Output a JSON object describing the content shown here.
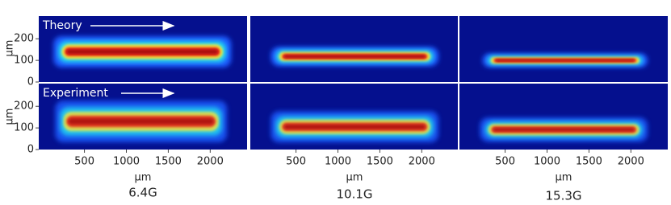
{
  "figure": {
    "row_labels": [
      "Theory",
      "Experiment"
    ],
    "y_label": "μm",
    "x_label": "μm",
    "columns": [
      "6.4G",
      "10.1G",
      "15.3G"
    ],
    "xlim": [
      -45,
      2440
    ],
    "ylim": [
      0,
      305
    ],
    "xticks": [
      500,
      1000,
      1500,
      2000
    ],
    "yticks": [
      0,
      100,
      200
    ],
    "panels": [
      {
        "center": 140,
        "width": 45,
        "x_start": 130,
        "x_end": 2250
      },
      {
        "center": 118,
        "width": 28,
        "x_start": 200,
        "x_end": 2200
      },
      {
        "center": 100,
        "width": 20,
        "x_start": 230,
        "x_end": 2200
      },
      {
        "center": 130,
        "width": 60,
        "x_start": 150,
        "x_end": 2200
      },
      {
        "center": 105,
        "width": 45,
        "x_start": 200,
        "x_end": 2200
      },
      {
        "center": 92,
        "width": 35,
        "x_start": 200,
        "x_end": 2200
      }
    ]
  }
}
